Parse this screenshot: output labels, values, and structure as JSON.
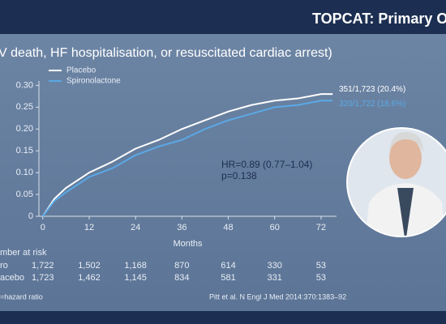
{
  "header": {
    "title": "TOPCAT: Primary O"
  },
  "chart_data": {
    "type": "line",
    "title": "V death, HF hospitalisation, or resuscitated cardiac arrest)",
    "xlabel": "Months",
    "x": [
      0,
      3,
      6,
      12,
      18,
      24,
      30,
      36,
      42,
      48,
      54,
      60,
      66,
      72,
      75
    ],
    "series": [
      {
        "name": "Placebo",
        "color": "#ffffff",
        "end_label": "351/1,723 (20.4%)",
        "values": [
          0,
          0.04,
          0.065,
          0.1,
          0.125,
          0.155,
          0.175,
          0.2,
          0.22,
          0.24,
          0.255,
          0.265,
          0.27,
          0.28,
          0.28
        ]
      },
      {
        "name": "Spironolactone",
        "color": "#5aa9e6",
        "end_label": "320/1,722 (18.6%)",
        "values": [
          0,
          0.035,
          0.055,
          0.09,
          0.11,
          0.14,
          0.16,
          0.175,
          0.2,
          0.22,
          0.235,
          0.25,
          0.255,
          0.265,
          0.265
        ]
      }
    ],
    "xlim": [
      -1,
      76
    ],
    "ylim": [
      0,
      0.31
    ],
    "xticks": [
      0,
      12,
      24,
      36,
      48,
      60,
      72
    ],
    "yticks": [
      0,
      0.05,
      {
        "value": 0.1,
        "label": "0.10"
      },
      0.15,
      {
        "value": 0.2,
        "label": "0.20"
      },
      0.25,
      {
        "value": 0.3,
        "label": "0.30"
      }
    ],
    "annotations": [
      "HR=0.89 (0.77–1.04)",
      "p=0.138"
    ]
  },
  "risk_table": {
    "title": "mber at risk",
    "rows": [
      {
        "label": "ro",
        "values": [
          "1,722",
          "1,502",
          "1,168",
          "870",
          "614",
          "330",
          "53"
        ]
      },
      {
        "label": "acebo",
        "values": [
          "1,723",
          "1,462",
          "1,145",
          "834",
          "581",
          "331",
          "53"
        ]
      }
    ]
  },
  "footer": {
    "note": "=hazard ratio",
    "citation": "Pitt et al. N Engl J Med 2014:370:1383–92"
  }
}
